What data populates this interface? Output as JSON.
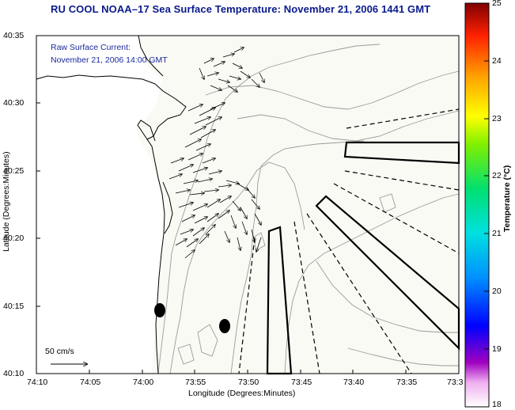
{
  "title": "RU COOL  NOAA–17  Sea Surface Temperature:  November 21, 2006 1441 GMT",
  "annotation": {
    "line1": "Raw Surface Current:",
    "line2": "November 21, 2006 14:00 GMT"
  },
  "axes": {
    "xlabel": "Longitude (Degrees:Minutes)",
    "ylabel": "Latitude (Degrees:Minutes)",
    "x_ticks": [
      "74:10",
      "74:05",
      "74:00",
      "73:55",
      "73:50",
      "73:45",
      "73:40",
      "73:35",
      "73:3"
    ],
    "y_ticks": [
      "40:35",
      "40:30",
      "40:25",
      "40:20",
      "40:15",
      "40:10"
    ]
  },
  "scale": {
    "label": "50 cm/s"
  },
  "colorbar": {
    "label": "Temperature (°C)",
    "ticks": [
      "25",
      "24",
      "23",
      "22",
      "21",
      "20",
      "19",
      "18"
    ],
    "range": [
      18,
      25
    ]
  },
  "colors": {
    "title": "#0a1a8c",
    "annotation": "#1a2a9c",
    "land": "#fafaf4",
    "contour": "#9a9a9a"
  }
}
